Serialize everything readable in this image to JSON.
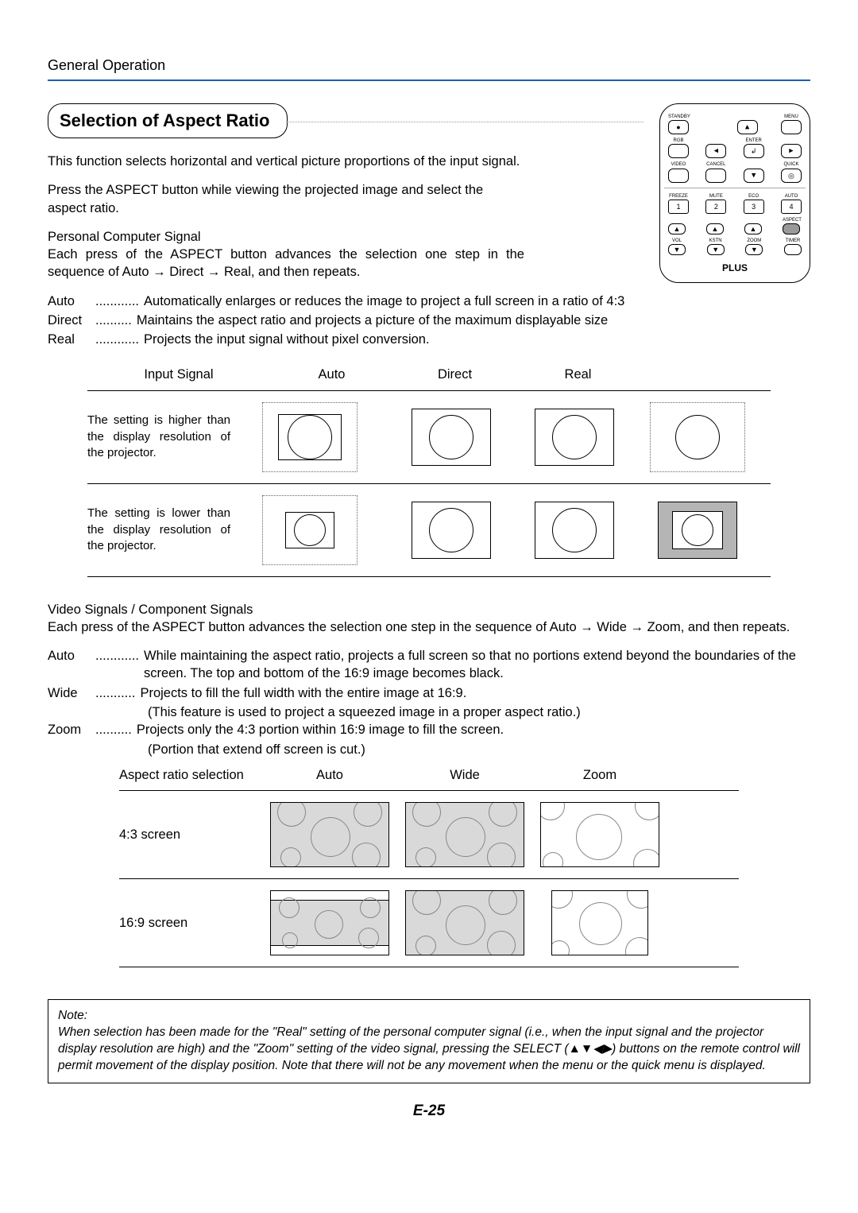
{
  "header": "General Operation",
  "section_title": "Selection of Aspect Ratio",
  "intro1": "This function selects horizontal and vertical picture proportions of the input signal.",
  "intro2": "Press the ASPECT button while viewing the projected image and select the aspect ratio.",
  "pc_signal_title": "Personal Computer Signal",
  "pc_signal_text": "Each press of the ASPECT button advances the selection one step in the sequence of Auto → Direct → Real, and then repeats.",
  "pc_defs": [
    {
      "term": "Auto",
      "dots": "............",
      "desc": "Automatically enlarges or reduces the image to project a full screen in a ratio of 4:3"
    },
    {
      "term": "Direct",
      "dots": "..........",
      "desc": "Maintains the aspect ratio and projects a picture of the maximum displayable size"
    },
    {
      "term": "Real",
      "dots": "............",
      "desc": "Projects the input signal without pixel conversion."
    }
  ],
  "tbl1": {
    "headers": [
      "Input Signal",
      "Auto",
      "Direct",
      "Real"
    ],
    "rows": [
      "The setting is higher than the display resolution of the projector.",
      "The setting is lower than the display resolution of the projector."
    ]
  },
  "video_title": "Video Signals / Component Signals",
  "video_text": "Each press of the ASPECT button advances the selection one step in the sequence of Auto → Wide → Zoom, and then repeats.",
  "video_defs": [
    {
      "term": "Auto",
      "dots": "............",
      "desc": "While maintaining the aspect ratio, projects a full screen so that no portions extend beyond the boundaries of the screen. The top and bottom of the 16:9 image becomes black."
    },
    {
      "term": "Wide",
      "dots": "...........",
      "desc": "Projects to fill the full width with the entire image at 16:9.",
      "desc2": "(This feature is used to project a squeezed image in a proper aspect ratio.)"
    },
    {
      "term": "Zoom",
      "dots": "..........",
      "desc": "Projects only the 4:3 portion within 16:9 image to fill the screen.",
      "desc2": "(Portion that extend off screen is cut.)"
    }
  ],
  "tbl2": {
    "headers": [
      "Aspect ratio selection",
      "Auto",
      "Wide",
      "Zoom"
    ],
    "rows": [
      "4:3 screen",
      "16:9 screen"
    ]
  },
  "note_title": "Note:",
  "note_body": "When selection has been made for the \"Real\" setting of the personal computer signal (i.e., when the input signal and the projector display resolution are high) and the \"Zoom\" setting of the video signal, pressing the SELECT (▲▼◀▶) buttons on the remote control will permit movement of the display position. Note that there will not be any movement when the menu or the quick menu is displayed.",
  "page_num": "E-25",
  "remote": {
    "brand": "PLUS"
  }
}
